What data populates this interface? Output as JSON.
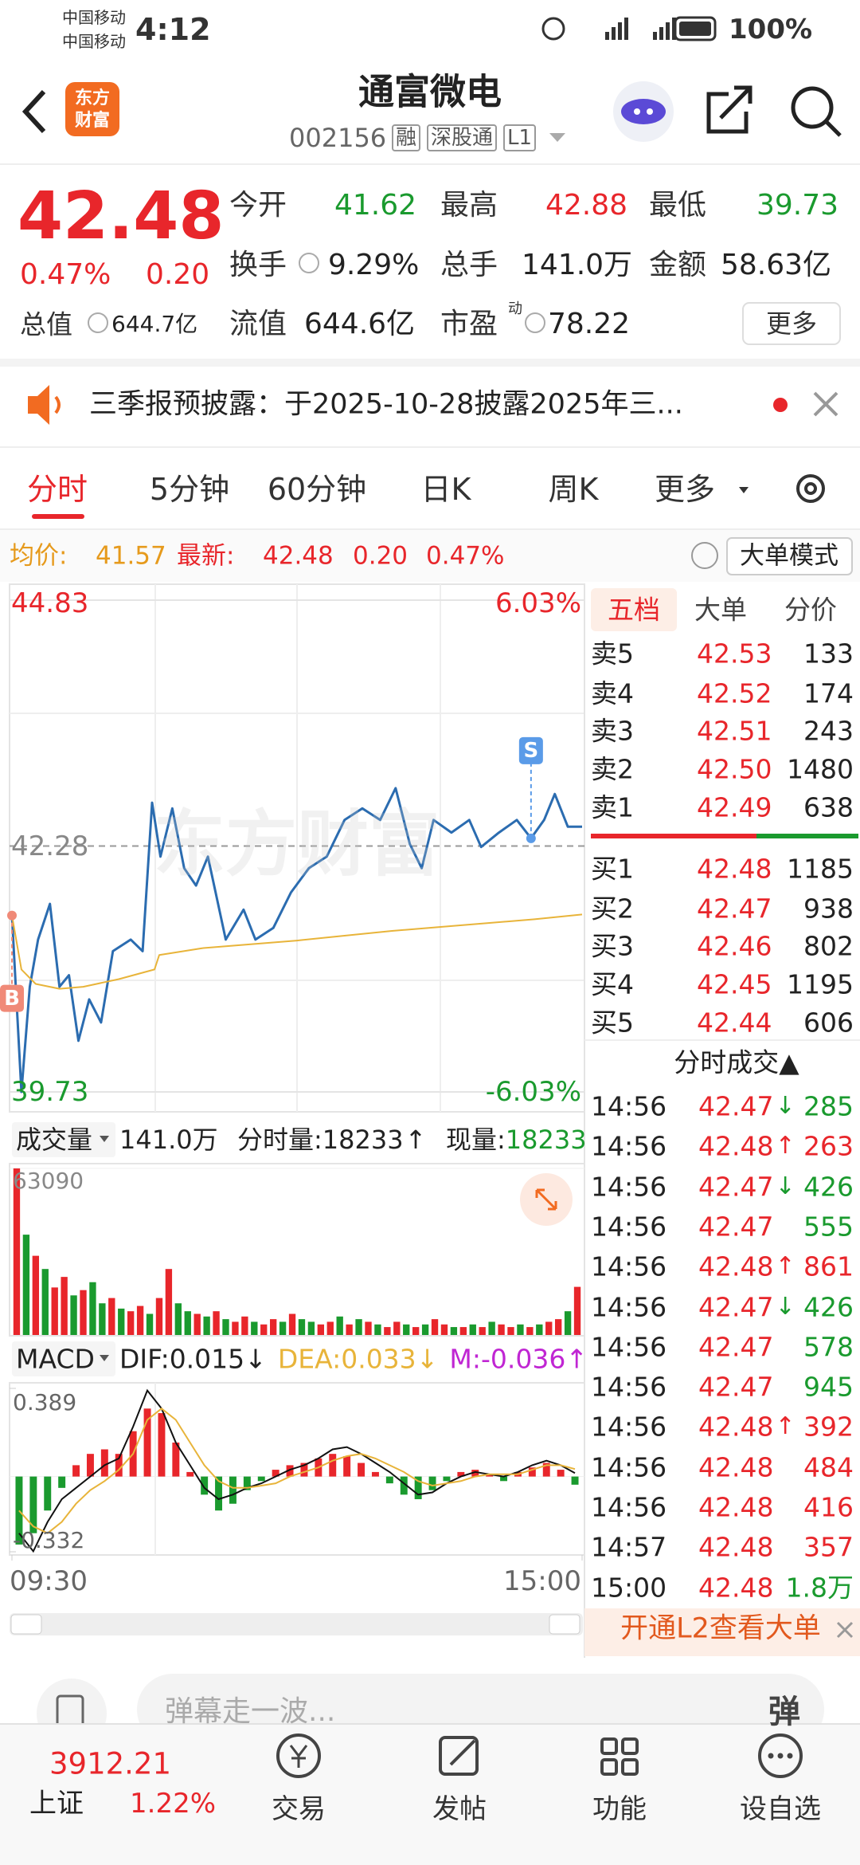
{
  "status_bar": {
    "carrier1": "中国移动",
    "carrier2": "中国移动",
    "time": "4:12",
    "battery": "100%"
  },
  "header": {
    "title": "通富微电",
    "code": "002156",
    "tags": [
      "融",
      "深股通",
      "L1"
    ],
    "logo": [
      "东方",
      "财富"
    ]
  },
  "quote": {
    "price": "42.48",
    "change_pct": "0.47%",
    "change": "0.20",
    "more": "更多",
    "fields": [
      {
        "label": "今开",
        "value": "41.62",
        "color": "#1a9a2e"
      },
      {
        "label": "最高",
        "value": "42.88",
        "color": "#e8262b"
      },
      {
        "label": "最低",
        "value": "39.73",
        "color": "#1a9a2e"
      },
      {
        "label": "换手",
        "value": "9.29%",
        "color": "#222"
      },
      {
        "label": "总手",
        "value": "141.0万",
        "color": "#222"
      },
      {
        "label": "金额",
        "value": "58.63亿",
        "color": "#222"
      },
      {
        "label": "总值",
        "value": "644.7亿",
        "color": "#222"
      },
      {
        "label": "流值",
        "value": "644.6亿",
        "color": "#222"
      },
      {
        "label": "市盈",
        "sup": "动",
        "value": "78.22",
        "color": "#222"
      }
    ]
  },
  "notice": {
    "text": "三季报预披露：于2025-10-28披露2025年三..."
  },
  "tabs": [
    "分时",
    "5分钟",
    "60分钟",
    "日K",
    "周K",
    "更多"
  ],
  "info_bar": {
    "avg_label": "均价:",
    "avg": "41.57",
    "latest_label": "最新:",
    "latest": "42.48",
    "change": "0.20",
    "pct": "0.47%",
    "mode": "大单模式"
  },
  "chart_data": [
    {
      "type": "line",
      "watermark": "东方财富",
      "ylim": [
        39.73,
        44.83
      ],
      "yticks": [
        39.73,
        42.28,
        44.83
      ],
      "y2lim": [
        -6.03,
        6.03
      ],
      "y2ticks": [
        {
          "value": -6.03,
          "label": "-6.03%"
        },
        {
          "value": 6.03,
          "label": "6.03%"
        }
      ],
      "xlim": [
        0,
        240
      ],
      "xticks": [
        {
          "value": 0,
          "label": "09:30"
        },
        {
          "value": 240,
          "label": "15:00"
        }
      ],
      "series": [
        {
          "color": "#2b6cb0",
          "x": [
            0,
            4,
            7.5,
            11,
            16,
            20,
            24,
            28,
            32.5,
            37.5,
            42.5,
            50,
            55,
            59,
            62.5,
            67.5,
            72.5,
            77.5,
            82.5,
            90,
            97.5,
            102.5,
            110,
            117.5,
            125,
            132.5,
            140,
            147.5,
            155,
            161.5,
            167.5,
            172.5,
            177.5,
            185,
            192.5,
            197.5,
            205,
            212.5,
            218.5,
            224,
            228.5,
            234,
            240
          ],
          "values": [
            41.56,
            39.73,
            40.82,
            41.31,
            41.68,
            40.82,
            40.94,
            40.26,
            40.69,
            40.45,
            41.19,
            41.31,
            41.19,
            42.73,
            42.17,
            42.67,
            42.05,
            41.87,
            42.17,
            41.31,
            41.62,
            41.31,
            41.43,
            41.8,
            42.05,
            42.17,
            42.55,
            42.67,
            42.55,
            42.88,
            42.3,
            42.05,
            42.55,
            42.42,
            42.55,
            42.27,
            42.42,
            42.55,
            42.36,
            42.55,
            42.82,
            42.48,
            42.48
          ]
        },
        {
          "color": "#e8b43a",
          "x": [
            0,
            4,
            10,
            20,
            30,
            45,
            60,
            62,
            80,
            100,
            120,
            140,
            160,
            180,
            200,
            220,
            240
          ],
          "values": [
            41.56,
            41.0,
            40.85,
            40.8,
            40.82,
            40.9,
            41.0,
            41.15,
            41.22,
            41.26,
            41.3,
            41.35,
            41.4,
            41.44,
            41.48,
            41.52,
            41.57
          ]
        }
      ],
      "markers": [
        {
          "label": "B",
          "x": 0,
          "value": 41.56,
          "color": "#f08a78"
        },
        {
          "label": "S",
          "x": 218.5,
          "value": 42.36,
          "color": "#5a9be8"
        }
      ]
    },
    {
      "type": "bar",
      "title": "成交量",
      "total": "141.0万",
      "minute_vol_label": "分时量:",
      "minute_vol": "18233",
      "minute_arrow": "↑",
      "cur_label": "现量:",
      "cur_vol": "18233",
      "ylim": [
        0,
        63090
      ],
      "yticks": [
        63090
      ],
      "values": [
        63090,
        38000,
        30000,
        25000,
        18000,
        22000,
        15000,
        17000,
        20000,
        12000,
        14000,
        10000,
        9000,
        11000,
        8000,
        14000,
        25000,
        12000,
        9000,
        8000,
        7000,
        9000,
        6000,
        5000,
        7000,
        5000,
        4000,
        6000,
        5000,
        8000,
        6000,
        5000,
        4000,
        5000,
        7000,
        4000,
        6000,
        5000,
        4000,
        3000,
        5000,
        4000,
        3000,
        4000,
        6000,
        4000,
        3000,
        3000,
        4000,
        3000,
        5000,
        4000,
        3000,
        4000,
        3000,
        4000,
        5000,
        6000,
        9000,
        18233
      ],
      "colors": [
        "#e8262b",
        "#1a9a2e",
        "#e8262b",
        "#1a9a2e",
        "#e8262b",
        "#e8262b",
        "#1a9a2e",
        "#e8262b",
        "#1a9a2e",
        "#1a9a2e",
        "#e8262b",
        "#1a9a2e",
        "#e8262b",
        "#e8262b",
        "#1a9a2e",
        "#e8262b",
        "#e8262b",
        "#1a9a2e",
        "#1a9a2e",
        "#e8262b",
        "#1a9a2e",
        "#e8262b",
        "#1a9a2e",
        "#e8262b",
        "#e8262b",
        "#1a9a2e",
        "#e8262b",
        "#e8262b",
        "#1a9a2e",
        "#e8262b",
        "#1a9a2e",
        "#1a9a2e",
        "#e8262b",
        "#e8262b",
        "#1a9a2e",
        "#e8262b",
        "#1a9a2e",
        "#e8262b",
        "#1a9a2e",
        "#e8262b",
        "#e8262b",
        "#1a9a2e",
        "#e8262b",
        "#1a9a2e",
        "#e8262b",
        "#e8262b",
        "#1a9a2e",
        "#e8262b",
        "#1a9a2e",
        "#e8262b",
        "#1a9a2e",
        "#e8262b",
        "#e8262b",
        "#1a9a2e",
        "#e8262b",
        "#1a9a2e",
        "#e8262b",
        "#e8262b",
        "#1a9a2e",
        "#e8262b"
      ]
    },
    {
      "type": "macd",
      "title": "MACD",
      "dif_label": "DIF:",
      "dif_value": "0.015",
      "dif_arrow": "↓",
      "dea_label": "DEA:",
      "dea_value": "0.033",
      "dea_arrow": "↓",
      "m_label": "M:",
      "m_value": "-0.036",
      "m_arrow": "↑",
      "ylim": [
        -0.332,
        0.389
      ],
      "yticks": [
        -0.332,
        0.389
      ],
      "histogram": [
        -0.3,
        -0.25,
        -0.15,
        -0.05,
        0.05,
        0.1,
        0.12,
        0.1,
        0.2,
        0.3,
        0.28,
        0.15,
        0.02,
        -0.08,
        -0.15,
        -0.12,
        -0.06,
        -0.02,
        0.03,
        0.05,
        0.06,
        0.08,
        0.1,
        0.09,
        0.06,
        0.02,
        -0.03,
        -0.08,
        -0.1,
        -0.06,
        -0.02,
        0.02,
        0.03,
        0.01,
        -0.02,
        0.02,
        0.04,
        0.06,
        0.03,
        -0.036
      ],
      "dif": [
        -0.25,
        -0.33,
        -0.2,
        -0.1,
        -0.05,
        0,
        0.05,
        0.08,
        0.22,
        0.38,
        0.3,
        0.15,
        0.05,
        -0.05,
        -0.1,
        -0.08,
        -0.05,
        -0.03,
        0,
        0.03,
        0.05,
        0.08,
        0.12,
        0.13,
        0.1,
        0.06,
        0.02,
        -0.03,
        -0.08,
        -0.07,
        -0.03,
        0,
        0.02,
        0.01,
        0,
        0.02,
        0.05,
        0.07,
        0.05,
        0.015
      ],
      "dea": [
        -0.15,
        -0.22,
        -0.25,
        -0.2,
        -0.12,
        -0.06,
        -0.02,
        0.03,
        0.1,
        0.25,
        0.3,
        0.25,
        0.15,
        0.05,
        -0.02,
        -0.05,
        -0.05,
        -0.04,
        -0.03,
        0,
        0.02,
        0.04,
        0.07,
        0.09,
        0.1,
        0.08,
        0.05,
        0.02,
        -0.02,
        -0.04,
        -0.03,
        -0.02,
        0,
        0.01,
        0.01,
        0.01,
        0.03,
        0.05,
        0.05,
        0.033
      ],
      "dif_color": "#111",
      "dea_color": "#e8b43a",
      "up_color": "#e8262b",
      "down_color": "#1a9a2e"
    }
  ],
  "orderbook": {
    "tabs": [
      "五档",
      "大单",
      "分价"
    ],
    "asks": [
      {
        "label": "卖5",
        "price": "42.53",
        "vol": 133
      },
      {
        "label": "卖4",
        "price": "42.52",
        "vol": 174
      },
      {
        "label": "卖3",
        "price": "42.51",
        "vol": 243
      },
      {
        "label": "卖2",
        "price": "42.50",
        "vol": 1480
      },
      {
        "label": "卖1",
        "price": "42.49",
        "vol": 638
      }
    ],
    "bids": [
      {
        "label": "买1",
        "price": "42.48",
        "vol": 1185
      },
      {
        "label": "买2",
        "price": "42.47",
        "vol": 938
      },
      {
        "label": "买3",
        "price": "42.46",
        "vol": 802
      },
      {
        "label": "买4",
        "price": "42.45",
        "vol": 1195
      },
      {
        "label": "买5",
        "price": "42.44",
        "vol": 606
      }
    ]
  },
  "trades": {
    "title": "分时成交▲",
    "l2": "开通L2查看大单",
    "rows": [
      {
        "time": "14:56",
        "price": "42.47",
        "arrow": "↓",
        "vol": "285",
        "vol_color": "#1a9a2e"
      },
      {
        "time": "14:56",
        "price": "42.48",
        "arrow": "↑",
        "vol": "263",
        "vol_color": "#e8262b"
      },
      {
        "time": "14:56",
        "price": "42.47",
        "arrow": "↓",
        "vol": "426",
        "vol_color": "#1a9a2e"
      },
      {
        "time": "14:56",
        "price": "42.47",
        "vol": "555",
        "vol_color": "#1a9a2e"
      },
      {
        "time": "14:56",
        "price": "42.48",
        "arrow": "↑",
        "vol": "861",
        "vol_color": "#e8262b"
      },
      {
        "time": "14:56",
        "price": "42.47",
        "arrow": "↓",
        "vol": "426",
        "vol_color": "#1a9a2e"
      },
      {
        "time": "14:56",
        "price": "42.47",
        "vol": "578",
        "vol_color": "#1a9a2e"
      },
      {
        "time": "14:56",
        "price": "42.47",
        "vol": "945",
        "vol_color": "#1a9a2e"
      },
      {
        "time": "14:56",
        "price": "42.48",
        "arrow": "↑",
        "vol": "392",
        "vol_color": "#e8262b"
      },
      {
        "time": "14:56",
        "price": "42.48",
        "vol": "484",
        "vol_color": "#e8262b"
      },
      {
        "time": "14:56",
        "price": "42.48",
        "vol": "416",
        "vol_color": "#e8262b"
      },
      {
        "time": "14:57",
        "price": "42.48",
        "vol": "357",
        "vol_color": "#e8262b"
      },
      {
        "time": "15:00",
        "price": "42.48",
        "vol": "1.8万",
        "vol_color": "#1a9a2e"
      }
    ]
  },
  "input": {
    "placeholder": "弹幕走一波...",
    "button": "弹"
  },
  "nav": {
    "index_value": "3912.21",
    "index_name": "上证",
    "index_pct": "1.22%",
    "items": [
      "交易",
      "发帖",
      "功能",
      "设自选"
    ]
  }
}
